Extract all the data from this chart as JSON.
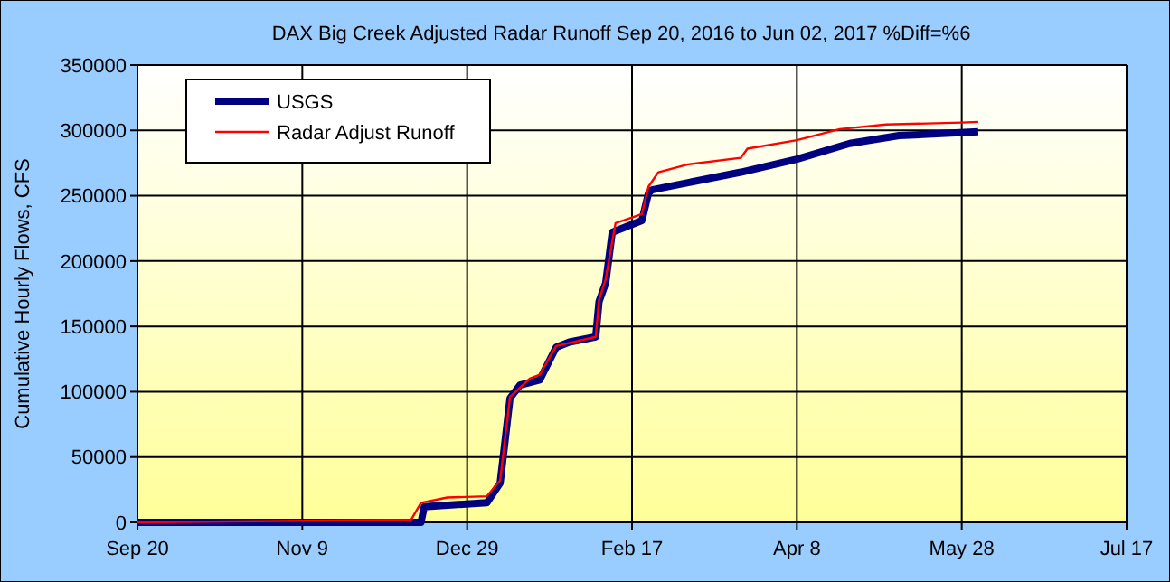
{
  "chart_data": {
    "type": "line",
    "title": "DAX Big Creek Adjusted Radar Runoff Sep 20, 2016 to Jun 02, 2017 %Diff=%6",
    "ylabel": "Cumulative Hourly Flows, CFS",
    "xlim": [
      "2016-09-20",
      "2017-07-17"
    ],
    "xticks": [
      {
        "value": "2016-09-20",
        "label": "Sep 20"
      },
      {
        "value": "2016-11-09",
        "label": "Nov 9"
      },
      {
        "value": "2016-12-29",
        "label": "Dec 29"
      },
      {
        "value": "2017-02-17",
        "label": "Feb 17"
      },
      {
        "value": "2017-04-08",
        "label": "Apr 8"
      },
      {
        "value": "2017-05-28",
        "label": "May 28"
      },
      {
        "value": "2017-07-17",
        "label": "Jul 17"
      }
    ],
    "ylim": [
      0,
      350000
    ],
    "yticks": [
      0,
      50000,
      100000,
      150000,
      200000,
      250000,
      300000,
      350000
    ],
    "grid": true,
    "legend": "top left",
    "series": [
      {
        "name": "USGS",
        "color": "#000080",
        "x": [
          "2016-09-20",
          "2016-12-15",
          "2016-12-16",
          "2017-01-04",
          "2017-01-08",
          "2017-01-11",
          "2017-01-14",
          "2017-01-20",
          "2017-01-25",
          "2017-01-29",
          "2017-02-06",
          "2017-02-07",
          "2017-02-09",
          "2017-02-11",
          "2017-02-20",
          "2017-02-22",
          "2017-02-23",
          "2017-03-06",
          "2017-03-22",
          "2017-04-08",
          "2017-04-24",
          "2017-05-09",
          "2017-06-02"
        ],
        "values": [
          0,
          0,
          12000,
          15000,
          30000,
          95000,
          105000,
          109000,
          134000,
          138000,
          142000,
          169000,
          183000,
          222000,
          231000,
          252000,
          254500,
          260000,
          268000,
          278000,
          290000,
          296000,
          299000
        ]
      },
      {
        "name": "Radar Adjust Runoff",
        "color": "#ff0000",
        "x": [
          "2016-09-20",
          "2016-12-12",
          "2016-12-15",
          "2016-12-23",
          "2017-01-04",
          "2017-01-08",
          "2017-01-11",
          "2017-01-17",
          "2017-01-20",
          "2017-01-25",
          "2017-02-06",
          "2017-02-07",
          "2017-02-09",
          "2017-02-12",
          "2017-02-20",
          "2017-02-22",
          "2017-02-25",
          "2017-03-06",
          "2017-03-22",
          "2017-03-24",
          "2017-04-08",
          "2017-04-21",
          "2017-05-05",
          "2017-05-28",
          "2017-06-02"
        ],
        "values": [
          0,
          2000,
          15000,
          19000,
          20000,
          32000,
          96000,
          110000,
          113000,
          135000,
          142000,
          170000,
          186000,
          229000,
          236000,
          257000,
          268000,
          274000,
          279000,
          286000,
          292500,
          301000,
          304500,
          306000,
          306500
        ]
      }
    ]
  }
}
